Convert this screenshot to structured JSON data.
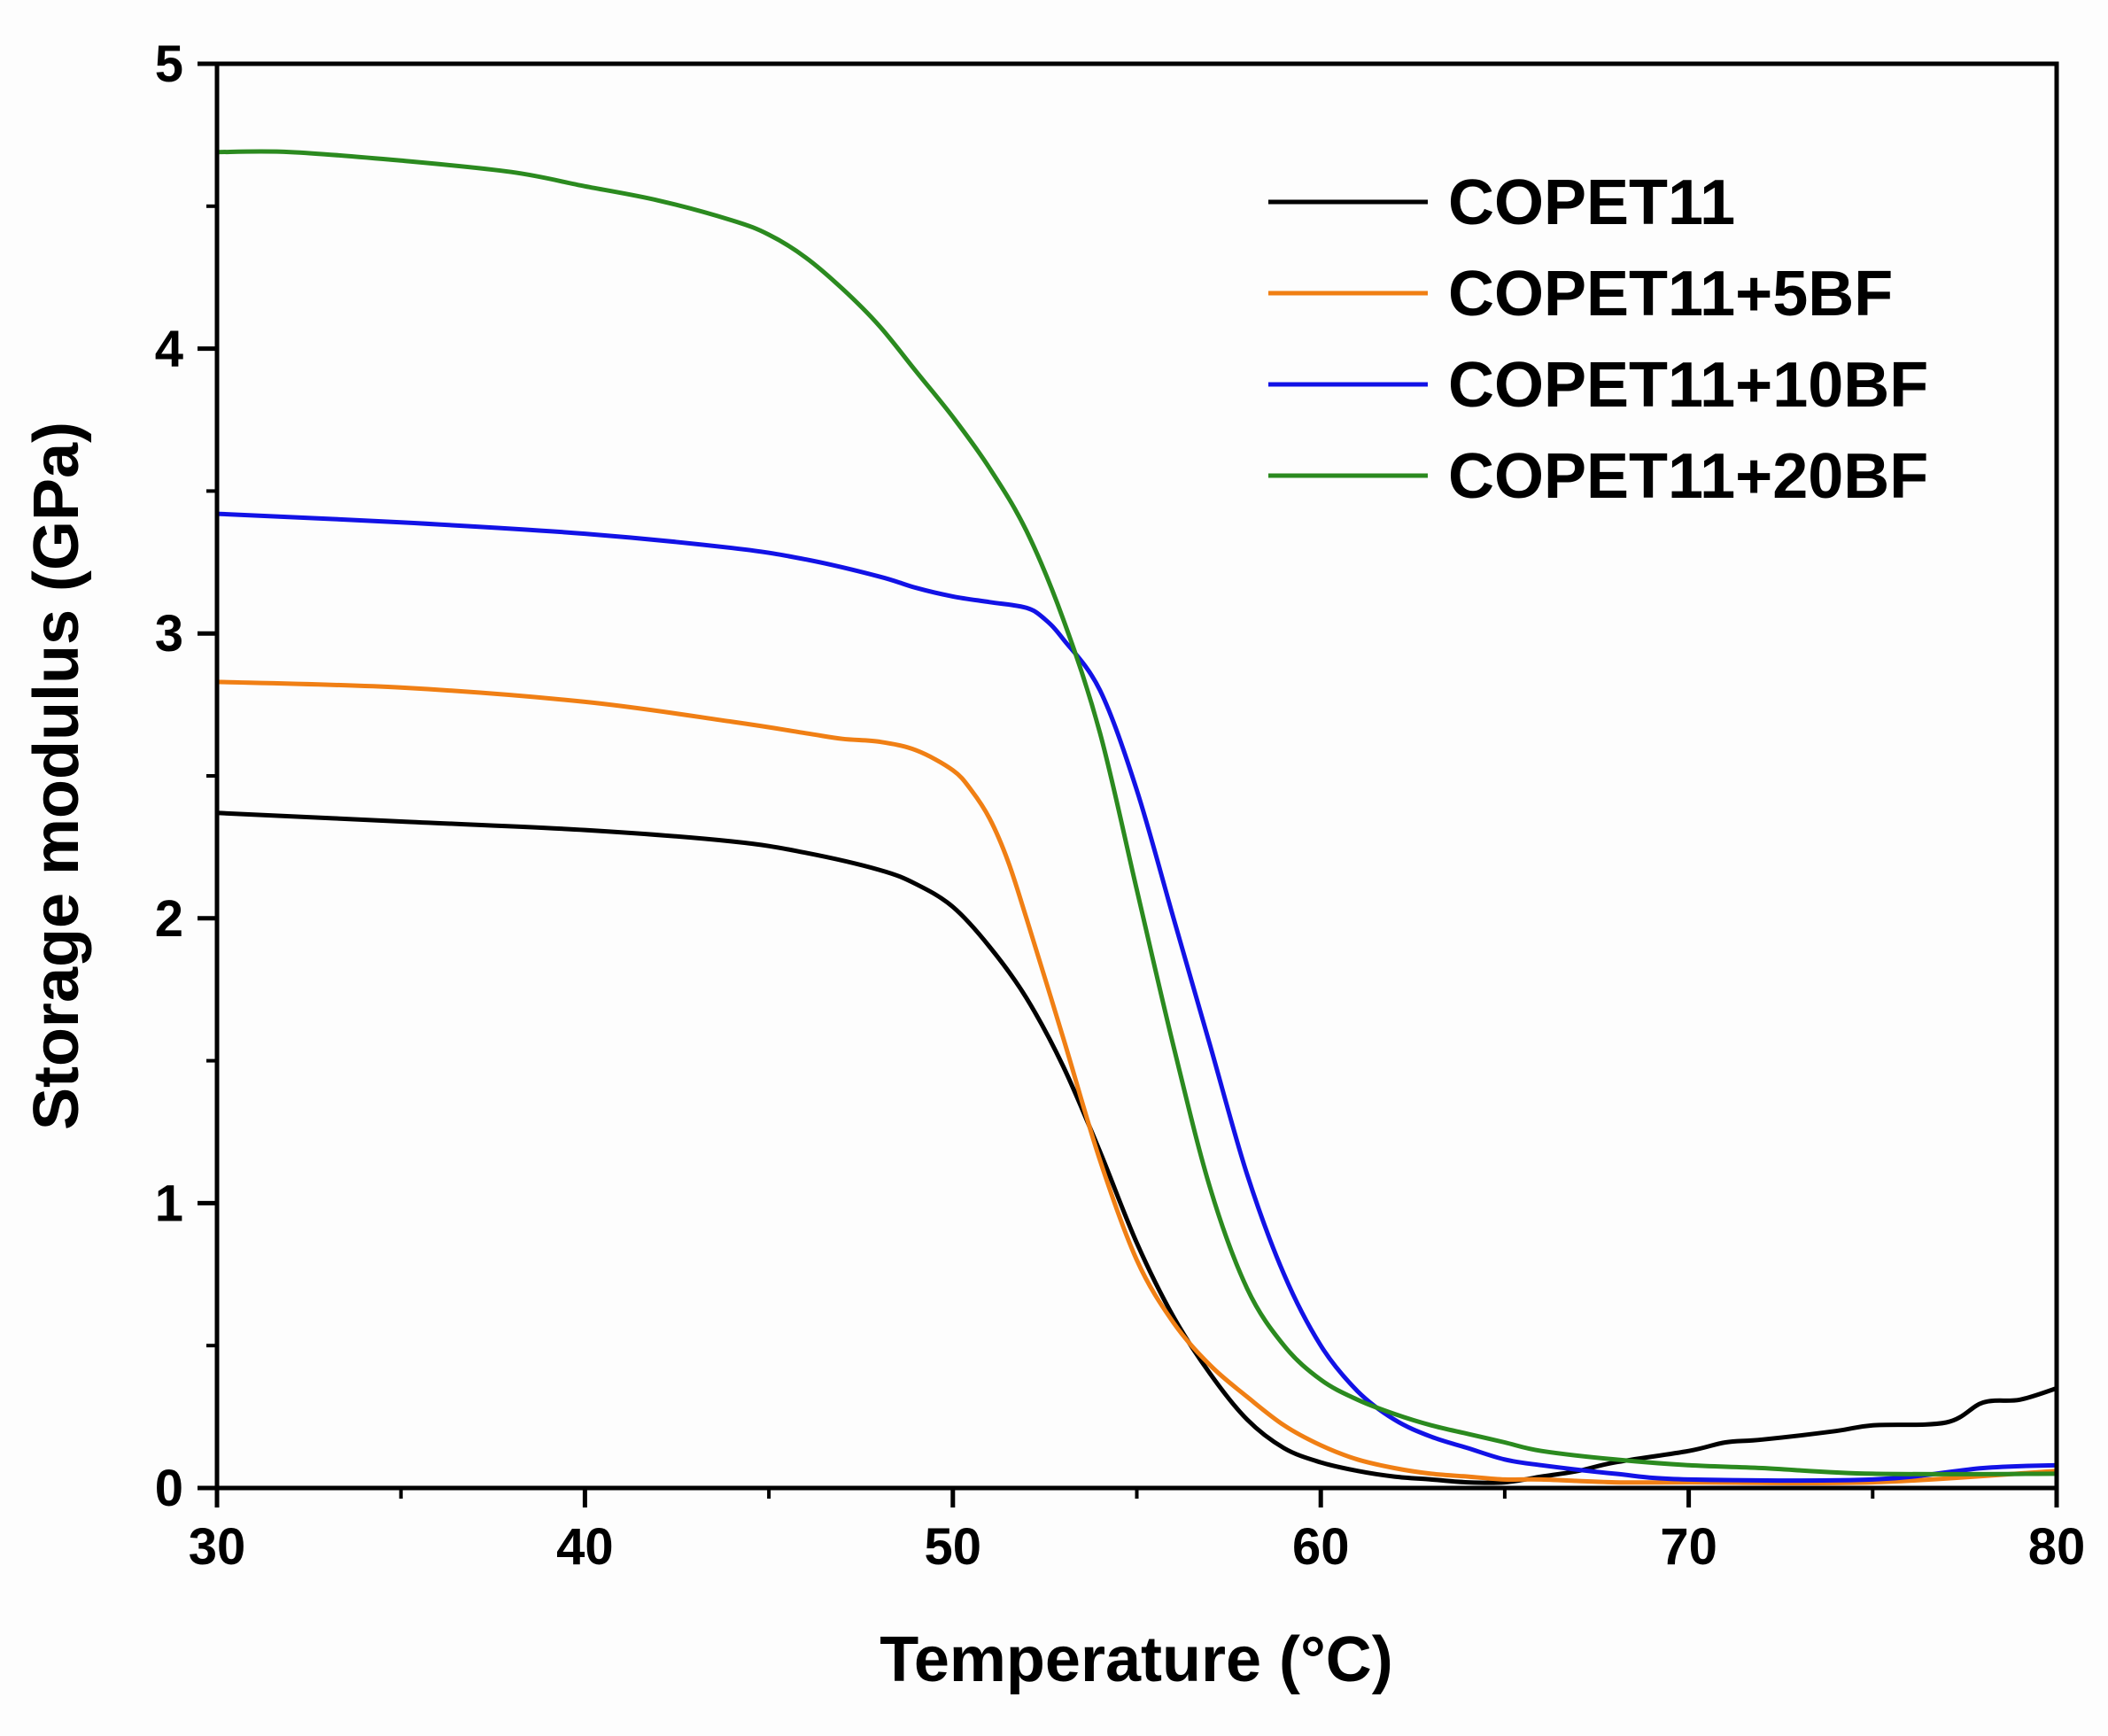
{
  "chart_data": {
    "type": "line",
    "title": "",
    "xlabel": "Temperature (°C)",
    "ylabel": "Storage modulus (GPa)",
    "xlim": [
      30,
      80
    ],
    "ylim": [
      0,
      5
    ],
    "xticks": [
      30,
      40,
      50,
      60,
      70,
      80
    ],
    "xtick_labels": [
      "30",
      "40",
      "50",
      "60",
      "70",
      "80"
    ],
    "yticks": [
      0,
      1,
      2,
      3,
      4,
      5
    ],
    "ytick_labels": [
      "0",
      "1",
      "2",
      "3",
      "4",
      "5"
    ],
    "grid": false,
    "legend_position": "top-right",
    "series": [
      {
        "name": "COPET11",
        "color": "#000000",
        "x": [
          30,
          35,
          40,
          44,
          46,
          48,
          49,
          50,
          51,
          52,
          53,
          54,
          55,
          56,
          57,
          58,
          59,
          60,
          61,
          62,
          63,
          64,
          65,
          66,
          67,
          68,
          70,
          71,
          72,
          74,
          75,
          77,
          78,
          79,
          80
        ],
        "y": [
          2.37,
          2.34,
          2.31,
          2.27,
          2.23,
          2.17,
          2.12,
          2.04,
          1.9,
          1.72,
          1.48,
          1.18,
          0.86,
          0.6,
          0.4,
          0.24,
          0.14,
          0.09,
          0.06,
          0.04,
          0.03,
          0.02,
          0.02,
          0.04,
          0.06,
          0.09,
          0.13,
          0.16,
          0.17,
          0.2,
          0.22,
          0.23,
          0.3,
          0.31,
          0.35
        ]
      },
      {
        "name": "COPET11+5BF",
        "color": "#f07f14",
        "x": [
          30,
          35,
          40,
          44,
          46,
          47,
          48,
          49,
          50,
          50.5,
          51,
          51.5,
          52,
          53,
          54,
          55,
          56,
          57,
          58,
          59,
          60,
          61,
          62,
          63,
          64,
          65,
          66,
          68,
          70,
          75,
          80
        ],
        "y": [
          2.83,
          2.81,
          2.76,
          2.69,
          2.65,
          2.63,
          2.62,
          2.59,
          2.52,
          2.45,
          2.35,
          2.2,
          2.0,
          1.58,
          1.15,
          0.8,
          0.58,
          0.43,
          0.32,
          0.22,
          0.15,
          0.1,
          0.07,
          0.05,
          0.04,
          0.03,
          0.03,
          0.02,
          0.02,
          0.02,
          0.06
        ]
      },
      {
        "name": "COPET11+10BF",
        "color": "#1212e6",
        "x": [
          30,
          35,
          40,
          44,
          46,
          48,
          49,
          50,
          51,
          52,
          52.5,
          53,
          54,
          55,
          56,
          57,
          58,
          59,
          60,
          61,
          62,
          63,
          64,
          65,
          66,
          68,
          70,
          75,
          78,
          80
        ],
        "y": [
          3.42,
          3.39,
          3.35,
          3.3,
          3.26,
          3.2,
          3.16,
          3.13,
          3.11,
          3.09,
          3.05,
          2.98,
          2.8,
          2.45,
          2.0,
          1.55,
          1.1,
          0.75,
          0.5,
          0.34,
          0.24,
          0.18,
          0.14,
          0.1,
          0.08,
          0.05,
          0.03,
          0.03,
          0.07,
          0.08
        ]
      },
      {
        "name": "COPET11+20BF",
        "color": "#2b8a1f",
        "x": [
          30,
          32,
          35,
          38,
          40,
          42,
          44,
          45,
          46,
          47,
          48,
          49,
          50,
          51,
          52,
          53,
          54,
          55,
          56,
          57,
          58,
          59,
          60,
          61,
          62,
          63,
          64,
          65,
          66,
          68,
          70,
          72,
          75,
          80
        ],
        "y": [
          4.69,
          4.69,
          4.66,
          4.62,
          4.57,
          4.52,
          4.45,
          4.4,
          4.32,
          4.21,
          4.08,
          3.92,
          3.76,
          3.58,
          3.36,
          3.05,
          2.65,
          2.1,
          1.55,
          1.05,
          0.7,
          0.5,
          0.38,
          0.31,
          0.26,
          0.22,
          0.19,
          0.16,
          0.13,
          0.1,
          0.08,
          0.07,
          0.05,
          0.05
        ]
      }
    ]
  }
}
